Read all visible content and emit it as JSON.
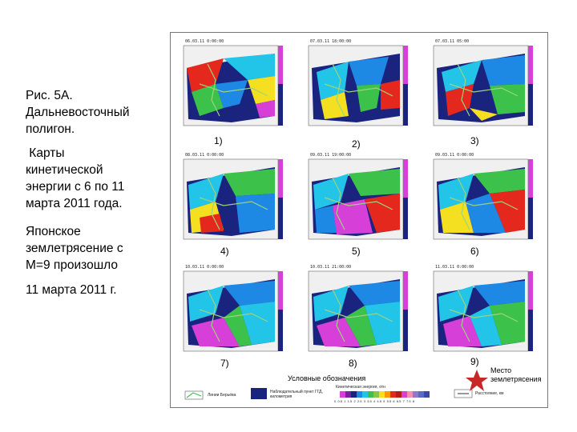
{
  "caption": {
    "l1": "Рис. 5А.",
    "l2": "Дальневосточный",
    "l3": "полигон.",
    "l4": " Карты",
    "l5": "кинетической",
    "l6": "энергии с 6 по 11",
    "l7": "марта 2011 года.",
    "l8": "Японское",
    "l9": "землетрясение с",
    "l10": "М=9 произошло",
    "l11": "11 марта 2011 г."
  },
  "panels": [
    {
      "num": "1)",
      "date": "06.03.11 0:00:00"
    },
    {
      "num": "2)",
      "date": "07.03.11 18:00:00"
    },
    {
      "num": "3)",
      "date": "07.03.11 05:00"
    },
    {
      "num": "4)",
      "date": "08.03.11 0:00:00"
    },
    {
      "num": "5)",
      "date": "09.03.11 19:00:00"
    },
    {
      "num": "6)",
      "date": "09.03.11 0:00:00"
    },
    {
      "num": "7)",
      "date": "10.03.11 0:00:00"
    },
    {
      "num": "8)",
      "date": "10.03.11 21:00:00"
    },
    {
      "num": "9)",
      "date": "11.03.11 0:00:00"
    }
  ],
  "legend": {
    "title": "Условные обозначения",
    "line_fault": "Линии Берьёва",
    "observation": "Наблюдательный пункт ГГД, километрия",
    "scale_title": "Кинетическая энергия, отн",
    "scale_ticks": "0  0.5  1  1.5  2  2.5  3  3.5  4  4.5  5  5.5  6  6.5  7  7.5  8",
    "distance": "Расстояние, км"
  },
  "quake_label": {
    "l1": "Место",
    "l2": "землетрясения"
  },
  "colors": {
    "dark_blue": "#1a237e",
    "cyan": "#22c4e8",
    "green": "#3cc24a",
    "yellow": "#f4e020",
    "red": "#e5281e",
    "magenta": "#d63fd8"
  }
}
